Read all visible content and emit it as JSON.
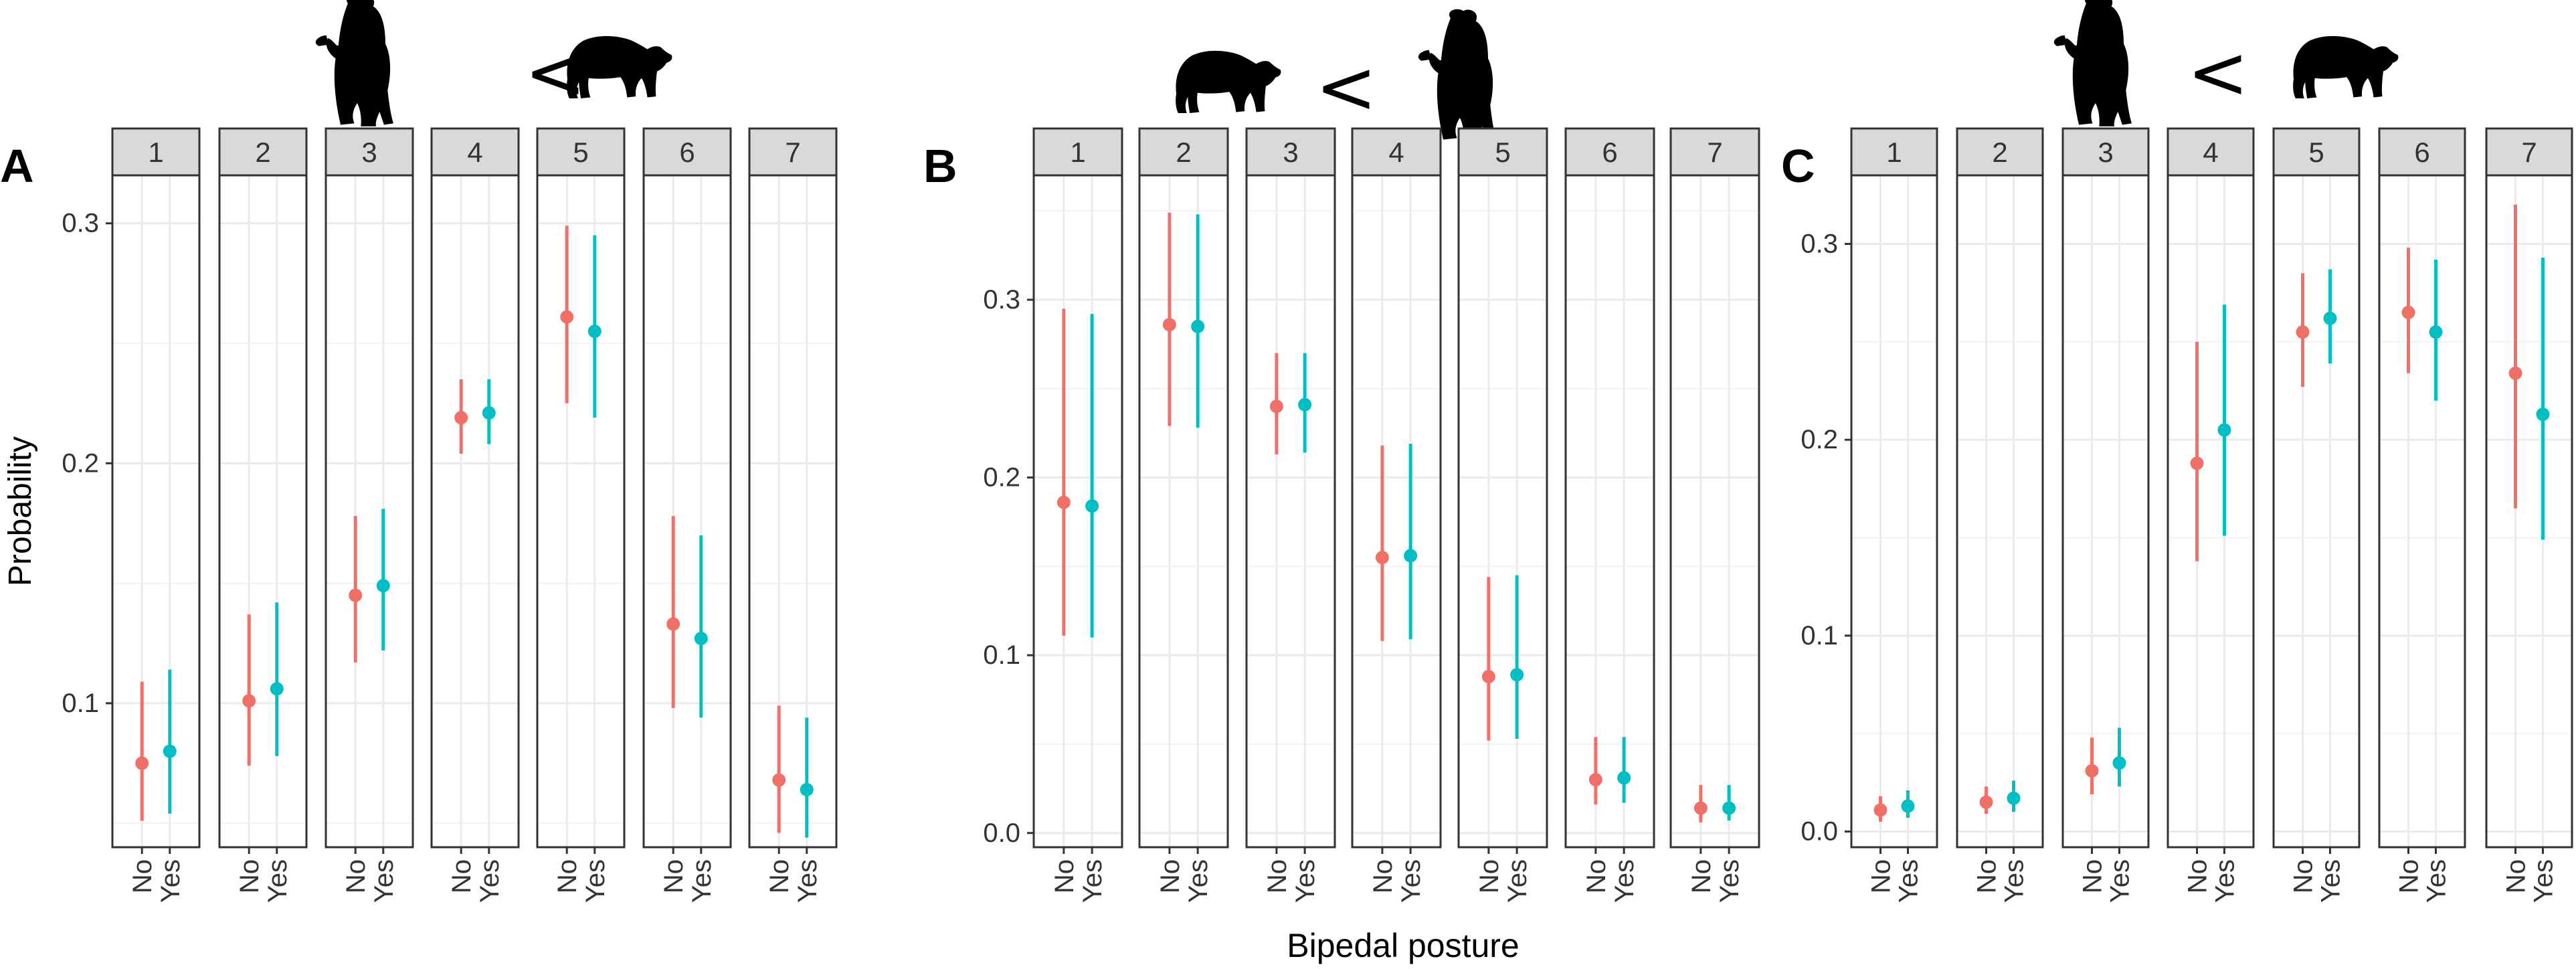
{
  "figure": {
    "ylabel": "Probability",
    "xlabel": "Bipedal posture",
    "colors": {
      "No": "#F07068",
      "Yes": "#00BFC4"
    }
  },
  "chart_data": [
    {
      "panel": "A",
      "type": "scatter",
      "subtype": "point-range faceted",
      "header_icons": [
        "standing-bear-icon",
        "less-than",
        "walking-bear-icon"
      ],
      "comparison_symbol": "<",
      "x_categories": [
        "No",
        "Yes"
      ],
      "facets": [
        "1",
        "2",
        "3",
        "4",
        "5",
        "6",
        "7"
      ],
      "ylim": [
        0.04,
        0.32
      ],
      "yticks": [
        0.1,
        0.2,
        0.3
      ],
      "ytick_labels": [
        "0.1",
        "0.2",
        "0.3"
      ],
      "series": [
        {
          "name": "No",
          "points": [
            {
              "facet": "1",
              "y": 0.075,
              "lo": 0.051,
              "hi": 0.109
            },
            {
              "facet": "2",
              "y": 0.101,
              "lo": 0.074,
              "hi": 0.137
            },
            {
              "facet": "3",
              "y": 0.145,
              "lo": 0.117,
              "hi": 0.178
            },
            {
              "facet": "4",
              "y": 0.219,
              "lo": 0.204,
              "hi": 0.235
            },
            {
              "facet": "5",
              "y": 0.261,
              "lo": 0.225,
              "hi": 0.299
            },
            {
              "facet": "6",
              "y": 0.133,
              "lo": 0.098,
              "hi": 0.178
            },
            {
              "facet": "7",
              "y": 0.068,
              "lo": 0.046,
              "hi": 0.099
            }
          ]
        },
        {
          "name": "Yes",
          "points": [
            {
              "facet": "1",
              "y": 0.08,
              "lo": 0.054,
              "hi": 0.114
            },
            {
              "facet": "2",
              "y": 0.106,
              "lo": 0.078,
              "hi": 0.142
            },
            {
              "facet": "3",
              "y": 0.149,
              "lo": 0.122,
              "hi": 0.181
            },
            {
              "facet": "4",
              "y": 0.221,
              "lo": 0.208,
              "hi": 0.235
            },
            {
              "facet": "5",
              "y": 0.255,
              "lo": 0.219,
              "hi": 0.295
            },
            {
              "facet": "6",
              "y": 0.127,
              "lo": 0.094,
              "hi": 0.17
            },
            {
              "facet": "7",
              "y": 0.064,
              "lo": 0.044,
              "hi": 0.094
            }
          ]
        }
      ]
    },
    {
      "panel": "B",
      "type": "scatter",
      "subtype": "point-range faceted",
      "header_icons": [
        "walking-bear-icon",
        "less-than",
        "standing-bear-icon"
      ],
      "comparison_symbol": "<",
      "x_categories": [
        "No",
        "Yes"
      ],
      "facets": [
        "1",
        "2",
        "3",
        "4",
        "5",
        "6",
        "7"
      ],
      "ylim": [
        -0.008,
        0.37
      ],
      "yticks": [
        0.0,
        0.1,
        0.2,
        0.3
      ],
      "ytick_labels": [
        "0.0",
        "0.1",
        "0.2",
        "0.3"
      ],
      "series": [
        {
          "name": "No",
          "points": [
            {
              "facet": "1",
              "y": 0.186,
              "lo": 0.111,
              "hi": 0.295
            },
            {
              "facet": "2",
              "y": 0.286,
              "lo": 0.229,
              "hi": 0.349
            },
            {
              "facet": "3",
              "y": 0.24,
              "lo": 0.213,
              "hi": 0.27
            },
            {
              "facet": "4",
              "y": 0.155,
              "lo": 0.108,
              "hi": 0.218
            },
            {
              "facet": "5",
              "y": 0.088,
              "lo": 0.052,
              "hi": 0.144
            },
            {
              "facet": "6",
              "y": 0.03,
              "lo": 0.016,
              "hi": 0.054
            },
            {
              "facet": "7",
              "y": 0.014,
              "lo": 0.006,
              "hi": 0.027
            }
          ]
        },
        {
          "name": "Yes",
          "points": [
            {
              "facet": "1",
              "y": 0.184,
              "lo": 0.11,
              "hi": 0.292
            },
            {
              "facet": "2",
              "y": 0.285,
              "lo": 0.228,
              "hi": 0.348
            },
            {
              "facet": "3",
              "y": 0.241,
              "lo": 0.214,
              "hi": 0.27
            },
            {
              "facet": "4",
              "y": 0.156,
              "lo": 0.109,
              "hi": 0.219
            },
            {
              "facet": "5",
              "y": 0.089,
              "lo": 0.053,
              "hi": 0.145
            },
            {
              "facet": "6",
              "y": 0.031,
              "lo": 0.017,
              "hi": 0.054
            },
            {
              "facet": "7",
              "y": 0.014,
              "lo": 0.007,
              "hi": 0.027
            }
          ]
        }
      ]
    },
    {
      "panel": "C",
      "type": "scatter",
      "subtype": "point-range faceted",
      "header_icons": [
        "standing-bear-icon",
        "less-than",
        "walking-bear-icon"
      ],
      "comparison_symbol": "<",
      "x_categories": [
        "No",
        "Yes"
      ],
      "facets": [
        "1",
        "2",
        "3",
        "4",
        "5",
        "6",
        "7"
      ],
      "ylim": [
        -0.008,
        0.335
      ],
      "yticks": [
        0.0,
        0.1,
        0.2,
        0.3
      ],
      "ytick_labels": [
        "0.0",
        "0.1",
        "0.2",
        "0.3"
      ],
      "series": [
        {
          "name": "No",
          "points": [
            {
              "facet": "1",
              "y": 0.011,
              "lo": 0.005,
              "hi": 0.018
            },
            {
              "facet": "2",
              "y": 0.015,
              "lo": 0.009,
              "hi": 0.023
            },
            {
              "facet": "3",
              "y": 0.031,
              "lo": 0.019,
              "hi": 0.048
            },
            {
              "facet": "4",
              "y": 0.188,
              "lo": 0.138,
              "hi": 0.25
            },
            {
              "facet": "5",
              "y": 0.255,
              "lo": 0.227,
              "hi": 0.285
            },
            {
              "facet": "6",
              "y": 0.265,
              "lo": 0.234,
              "hi": 0.298
            },
            {
              "facet": "7",
              "y": 0.234,
              "lo": 0.165,
              "hi": 0.32
            }
          ]
        },
        {
          "name": "Yes",
          "points": [
            {
              "facet": "1",
              "y": 0.013,
              "lo": 0.007,
              "hi": 0.021
            },
            {
              "facet": "2",
              "y": 0.017,
              "lo": 0.01,
              "hi": 0.026
            },
            {
              "facet": "3",
              "y": 0.035,
              "lo": 0.023,
              "hi": 0.053
            },
            {
              "facet": "4",
              "y": 0.205,
              "lo": 0.151,
              "hi": 0.269
            },
            {
              "facet": "5",
              "y": 0.262,
              "lo": 0.239,
              "hi": 0.287
            },
            {
              "facet": "6",
              "y": 0.255,
              "lo": 0.22,
              "hi": 0.292
            },
            {
              "facet": "7",
              "y": 0.213,
              "lo": 0.149,
              "hi": 0.293
            }
          ]
        }
      ]
    }
  ]
}
